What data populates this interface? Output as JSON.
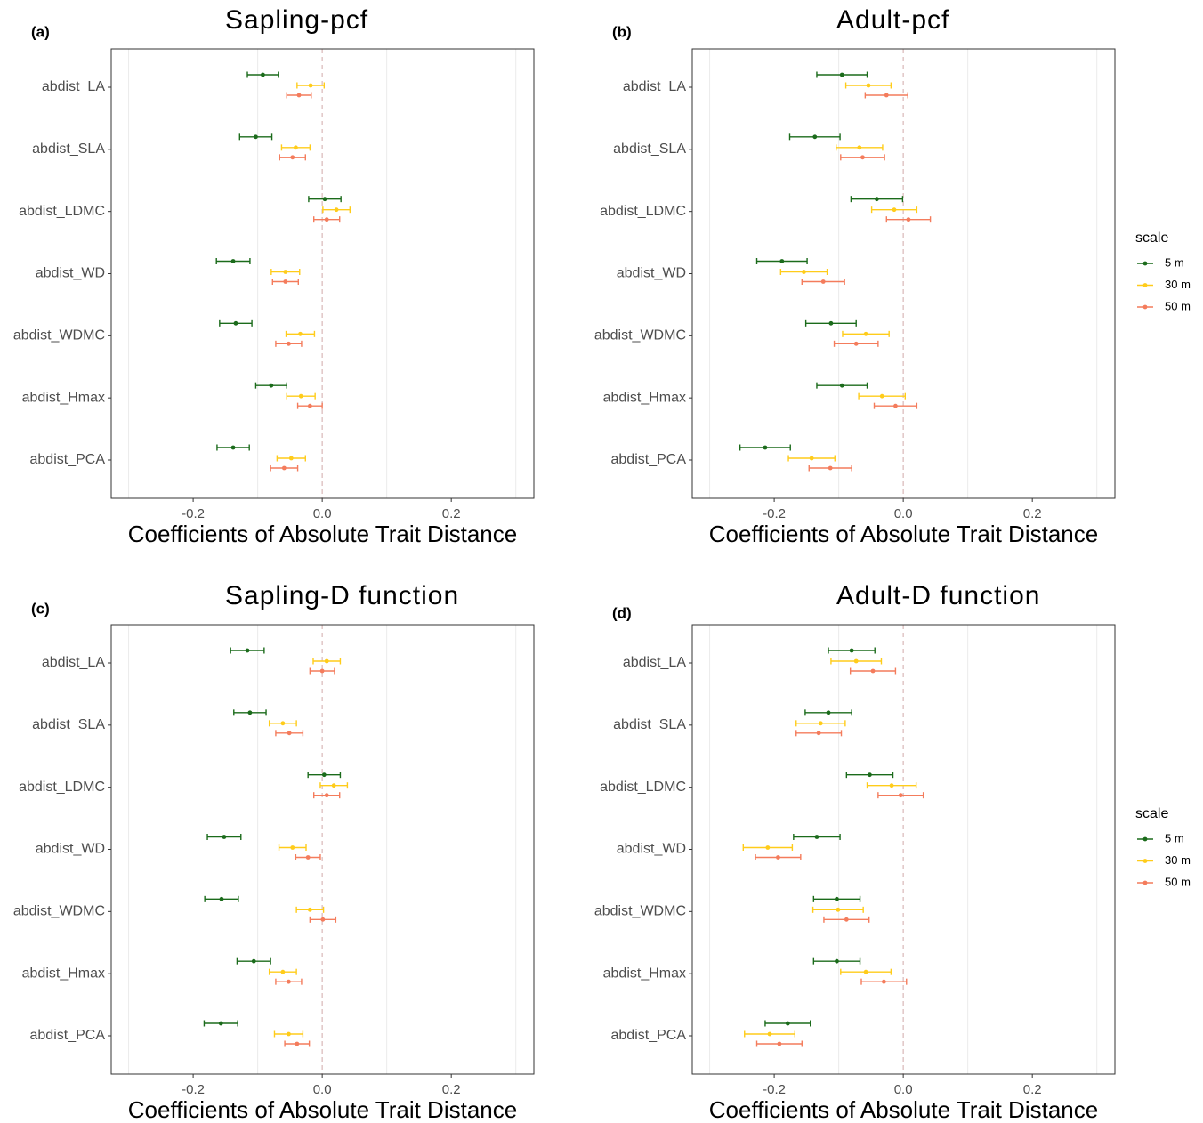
{
  "chart_data": [
    {
      "type": "errorbar",
      "tag": "(a)",
      "title": "Sapling-pcf",
      "x_label": "Coefficients of Absolute Trait Distance",
      "categories": [
        "abdist_LA",
        "abdist_SLA",
        "abdist_LDMC",
        "abdist_WD",
        "abdist_WDMC",
        "abdist_Hmax",
        "abdist_PCA"
      ],
      "series": [
        {
          "name": "5 m",
          "color": "#1b6b1b",
          "values": [
            -0.092,
            -0.103,
            0.004,
            -0.138,
            -0.134,
            -0.079,
            -0.138
          ],
          "errors": [
            0.024,
            0.025,
            0.025,
            0.026,
            0.025,
            0.024,
            0.025
          ]
        },
        {
          "name": "30 m",
          "color": "#ffcc1a",
          "values": [
            -0.018,
            -0.041,
            0.022,
            -0.057,
            -0.034,
            -0.033,
            -0.048
          ],
          "errors": [
            0.021,
            0.022,
            0.021,
            0.022,
            0.022,
            0.022,
            0.022
          ]
        },
        {
          "name": "50 m",
          "color": "#f47c5c",
          "values": [
            -0.036,
            -0.046,
            0.007,
            -0.057,
            -0.052,
            -0.019,
            -0.059
          ],
          "errors": [
            0.019,
            0.02,
            0.02,
            0.02,
            0.02,
            0.019,
            0.021
          ]
        }
      ],
      "xlim": [
        -0.327,
        0.328
      ],
      "xticks": [
        {
          "value": -0.2,
          "label": "-0.2"
        },
        {
          "value": 0,
          "label": "0.0"
        },
        {
          "value": 0.2,
          "label": "0.2"
        }
      ],
      "grid_lines": [
        -0.3,
        -0.1,
        0.1,
        0.3
      ],
      "ref_line": 0,
      "legend": false
    },
    {
      "type": "errorbar",
      "tag": "(b)",
      "title": "Adult-pcf",
      "x_label": "Coefficients of Absolute Trait Distance",
      "categories": [
        "abdist_LA",
        "abdist_SLA",
        "abdist_LDMC",
        "abdist_WD",
        "abdist_WDMC",
        "abdist_Hmax",
        "abdist_PCA"
      ],
      "series": [
        {
          "name": "5 m",
          "color": "#1b6b1b",
          "values": [
            -0.095,
            -0.137,
            -0.041,
            -0.188,
            -0.112,
            -0.095,
            -0.214
          ],
          "errors": [
            0.039,
            0.039,
            0.04,
            0.039,
            0.039,
            0.039,
            0.039
          ]
        },
        {
          "name": "30 m",
          "color": "#ffcc1a",
          "values": [
            -0.054,
            -0.068,
            -0.014,
            -0.154,
            -0.058,
            -0.033,
            -0.142
          ],
          "errors": [
            0.035,
            0.036,
            0.035,
            0.036,
            0.036,
            0.036,
            0.036
          ]
        },
        {
          "name": "50 m",
          "color": "#f47c5c",
          "values": [
            -0.026,
            -0.063,
            0.008,
            -0.124,
            -0.073,
            -0.012,
            -0.113
          ],
          "errors": [
            0.033,
            0.034,
            0.034,
            0.033,
            0.034,
            0.033,
            0.033
          ]
        }
      ],
      "xlim": [
        -0.327,
        0.328
      ],
      "xticks": [
        {
          "value": -0.2,
          "label": "-0.2"
        },
        {
          "value": 0,
          "label": "0.0"
        },
        {
          "value": 0.2,
          "label": "0.2"
        }
      ],
      "grid_lines": [
        -0.3,
        -0.1,
        0.1,
        0.3
      ],
      "ref_line": 0,
      "legend": true,
      "legend_title": "scale"
    },
    {
      "type": "errorbar",
      "tag": "(c)",
      "title": "Sapling-D function",
      "x_label": "Coefficients of Absolute Trait Distance",
      "categories": [
        "abdist_LA",
        "abdist_SLA",
        "abdist_LDMC",
        "abdist_WD",
        "abdist_WDMC",
        "abdist_Hmax",
        "abdist_PCA"
      ],
      "series": [
        {
          "name": "5 m",
          "color": "#1b6b1b",
          "values": [
            -0.116,
            -0.112,
            0.003,
            -0.152,
            -0.156,
            -0.106,
            -0.157
          ],
          "errors": [
            0.026,
            0.025,
            0.025,
            0.026,
            0.026,
            0.026,
            0.026
          ]
        },
        {
          "name": "30 m",
          "color": "#ffcc1a",
          "values": [
            0.007,
            -0.061,
            0.018,
            -0.046,
            -0.019,
            -0.061,
            -0.052
          ],
          "errors": [
            0.021,
            0.021,
            0.021,
            0.021,
            0.021,
            0.021,
            0.022
          ]
        },
        {
          "name": "50 m",
          "color": "#f47c5c",
          "values": [
            0.0,
            -0.051,
            0.007,
            -0.022,
            0.001,
            -0.052,
            -0.039
          ],
          "errors": [
            0.019,
            0.021,
            0.02,
            0.019,
            0.02,
            0.02,
            0.019
          ]
        }
      ],
      "xlim": [
        -0.327,
        0.328
      ],
      "xticks": [
        {
          "value": -0.2,
          "label": "-0.2"
        },
        {
          "value": 0,
          "label": "0.0"
        },
        {
          "value": 0.2,
          "label": "0.2"
        }
      ],
      "grid_lines": [
        -0.3,
        -0.1,
        0.1,
        0.3
      ],
      "ref_line": 0,
      "legend": false
    },
    {
      "type": "errorbar",
      "tag": "(d)",
      "title": "Adult-D function",
      "x_label": "Coefficients of Absolute Trait Distance",
      "categories": [
        "abdist_LA",
        "abdist_SLA",
        "abdist_LDMC",
        "abdist_WD",
        "abdist_WDMC",
        "abdist_Hmax",
        "abdist_PCA"
      ],
      "series": [
        {
          "name": "5 m",
          "color": "#1b6b1b",
          "values": [
            -0.08,
            -0.116,
            -0.052,
            -0.134,
            -0.103,
            -0.103,
            -0.179
          ],
          "errors": [
            0.036,
            0.036,
            0.036,
            0.036,
            0.036,
            0.036,
            0.035
          ]
        },
        {
          "name": "30 m",
          "color": "#ffcc1a",
          "values": [
            -0.073,
            -0.128,
            -0.018,
            -0.21,
            -0.101,
            -0.058,
            -0.207
          ],
          "errors": [
            0.039,
            0.038,
            0.038,
            0.038,
            0.039,
            0.039,
            0.039
          ]
        },
        {
          "name": "50 m",
          "color": "#f47c5c",
          "values": [
            -0.047,
            -0.131,
            -0.004,
            -0.194,
            -0.088,
            -0.03,
            -0.192
          ],
          "errors": [
            0.035,
            0.035,
            0.035,
            0.035,
            0.035,
            0.035,
            0.035
          ]
        }
      ],
      "xlim": [
        -0.327,
        0.328
      ],
      "xticks": [
        {
          "value": -0.2,
          "label": "-0.2"
        },
        {
          "value": 0,
          "label": "0.0"
        },
        {
          "value": 0.2,
          "label": "0.2"
        }
      ],
      "grid_lines": [
        -0.3,
        -0.1,
        0.1,
        0.3
      ],
      "ref_line": 0,
      "legend": true,
      "legend_title": "scale"
    }
  ]
}
